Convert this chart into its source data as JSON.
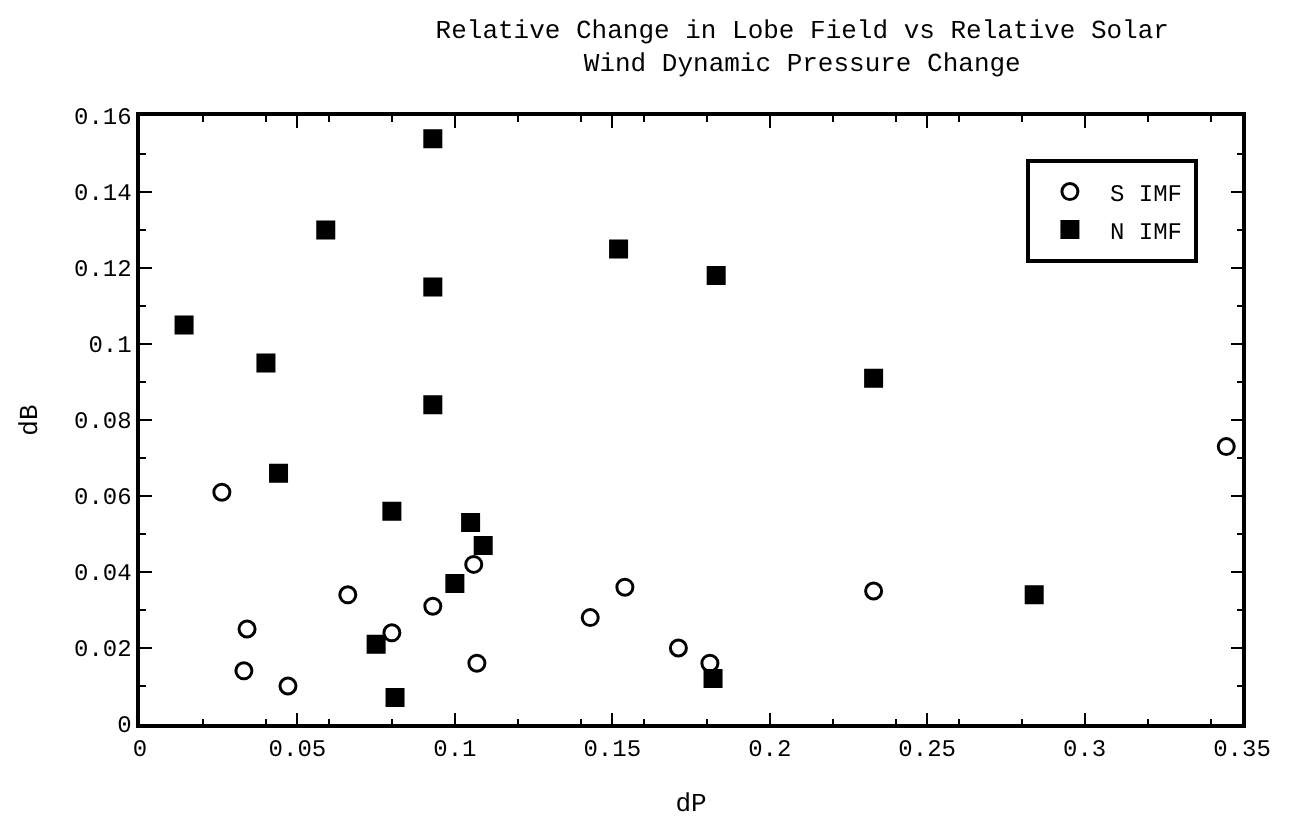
{
  "chart_data": {
    "type": "scatter",
    "title": "Relative Change in Lobe Field vs Relative Solar\nWind Dynamic Pressure Change",
    "xlabel": "dP",
    "ylabel": "dB",
    "xlim": [
      0,
      0.35
    ],
    "xticks": [
      0,
      0.05,
      0.1,
      0.15,
      0.2,
      0.25,
      0.3,
      0.35
    ],
    "ylim": [
      0,
      0.16
    ],
    "yticks": [
      0,
      0.02,
      0.04,
      0.06,
      0.08,
      0.1,
      0.12,
      0.14,
      0.16
    ],
    "legend": "top right",
    "series": [
      {
        "name": "S IMF",
        "color": "#000000",
        "marker": "circle-open",
        "x": [
          0.026,
          0.034,
          0.033,
          0.047,
          0.066,
          0.08,
          0.093,
          0.106,
          0.107,
          0.143,
          0.154,
          0.171,
          0.181,
          0.233,
          0.345
        ],
        "values": [
          0.061,
          0.025,
          0.014,
          0.01,
          0.034,
          0.024,
          0.031,
          0.042,
          0.016,
          0.028,
          0.036,
          0.02,
          0.016,
          0.035,
          0.073
        ]
      },
      {
        "name": "N IMF",
        "color": "#000000",
        "marker": "square",
        "x": [
          0.014,
          0.04,
          0.044,
          0.059,
          0.08,
          0.075,
          0.081,
          0.093,
          0.093,
          0.093,
          0.1,
          0.105,
          0.109,
          0.152,
          0.183,
          0.182,
          0.233,
          0.284
        ],
        "values": [
          0.105,
          0.095,
          0.066,
          0.13,
          0.056,
          0.021,
          0.007,
          0.154,
          0.115,
          0.084,
          0.037,
          0.053,
          0.047,
          0.125,
          0.118,
          0.012,
          0.091,
          0.034
        ]
      }
    ]
  }
}
